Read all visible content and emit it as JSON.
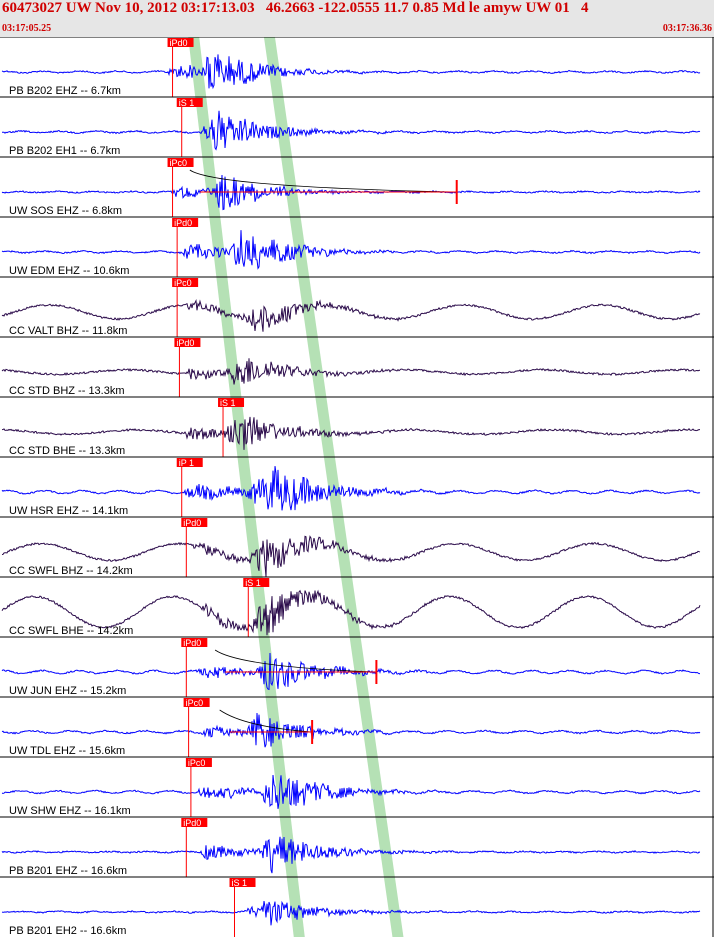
{
  "header": {
    "title": "60473027 UW Nov 10, 2012 03:17:13.03   46.2663 -122.0555 11.7 0.85 Md le amyw UW 01   4",
    "time_start": "03:17:05.25",
    "time_end": "03:17:36.36"
  },
  "colors": {
    "header_text": "#d00000",
    "header_bg": "#e6e6e6",
    "trace_short_period": "#0000ff",
    "trace_broadband": "#2a0a4a",
    "pick_box": "#ff0000",
    "pick_text": "#ffffff",
    "p_band": "#a8dca8",
    "s_band": "#a8dca8"
  },
  "chart_data": {
    "type": "line",
    "x_axis": {
      "start": "03:17:05.25",
      "end": "03:17:36.36"
    },
    "p_band_time": [
      8.2,
      12.8
    ],
    "s_band_time": [
      11.5,
      17.1
    ],
    "traces": [
      {
        "label": "PB B202 EHZ -- 6.7km",
        "pick": "iPd0",
        "pick_time": 7.3,
        "onset_time": 7.3,
        "secondary_time": 9.0,
        "peak_time": 9.0,
        "amp": 0.95,
        "background": 0.03,
        "kind": "sp"
      },
      {
        "label": "PB B202 EH1 -- 6.7km",
        "pick": "iS 1",
        "pick_time": 7.7,
        "onset_time": 8.7,
        "secondary_time": 9.0,
        "peak_time": 9.2,
        "amp": 0.9,
        "background": 0.03,
        "kind": "sp"
      },
      {
        "label": "UW SOS EHZ -- 6.8km",
        "pick": "iPc0",
        "pick_time": 7.3,
        "onset_time": 7.4,
        "secondary_time": 9.3,
        "peak_time": 9.6,
        "amp": 0.7,
        "background": 0.02,
        "kind": "sp",
        "coda": true,
        "marker_time": 19.9
      },
      {
        "label": "UW EDM EHZ -- 10.6km",
        "pick": "iPd0",
        "pick_time": 7.5,
        "onset_time": 7.9,
        "secondary_time": 10.0,
        "peak_time": 10.5,
        "amp": 0.9,
        "background": 0.03,
        "kind": "sp"
      },
      {
        "label": "CC VALT BHZ -- 11.8km",
        "pick": "iPc0",
        "pick_time": 7.5,
        "onset_time": 8.0,
        "secondary_time": 10.5,
        "peak_time": 11.0,
        "amp": 0.6,
        "background": 0.25,
        "kind": "bb"
      },
      {
        "label": "CC STD BHZ -- 13.3km",
        "pick": "iPd0",
        "pick_time": 7.6,
        "onset_time": 8.0,
        "secondary_time": 10.0,
        "peak_time": 10.3,
        "amp": 0.7,
        "background": 0.08,
        "kind": "bb"
      },
      {
        "label": "CC STD BHE -- 13.3km",
        "pick": "iS 1",
        "pick_time": 9.5,
        "onset_time": 8.0,
        "secondary_time": 9.7,
        "peak_time": 10.2,
        "amp": 0.8,
        "background": 0.08,
        "kind": "bb"
      },
      {
        "label": "UW HSR EHZ -- 14.1km",
        "pick": "iP 1",
        "pick_time": 7.7,
        "onset_time": 8.0,
        "secondary_time": 10.5,
        "peak_time": 12.0,
        "amp": 0.95,
        "background": 0.05,
        "kind": "sp"
      },
      {
        "label": "CC SWFL BHZ -- 14.2km",
        "pick": "iPd0",
        "pick_time": 7.9,
        "onset_time": 8.3,
        "secondary_time": 10.7,
        "peak_time": 11.5,
        "amp": 0.75,
        "background": 0.3,
        "kind": "bb"
      },
      {
        "label": "CC SWFL BHE -- 14.2km",
        "pick": "iS 1",
        "pick_time": 10.6,
        "onset_time": 8.7,
        "secondary_time": 10.8,
        "peak_time": 11.5,
        "amp": 0.8,
        "background": 0.55,
        "kind": "bb"
      },
      {
        "label": "UW JUN EHZ -- 15.2km",
        "pick": "iPd0",
        "pick_time": 7.9,
        "onset_time": 8.5,
        "secondary_time": 11.0,
        "peak_time": 11.7,
        "amp": 0.75,
        "background": 0.05,
        "kind": "sp",
        "coda": true,
        "marker_time": 16.4
      },
      {
        "label": "UW TDL EHZ -- 15.6km",
        "pick": "iPc0",
        "pick_time": 8.0,
        "onset_time": 8.7,
        "secondary_time": 10.7,
        "peak_time": 11.2,
        "amp": 0.7,
        "background": 0.04,
        "kind": "sp",
        "coda": true,
        "marker_time": 13.6
      },
      {
        "label": "UW SHW EHZ -- 16.1km",
        "pick": "iPc0",
        "pick_time": 8.1,
        "onset_time": 8.6,
        "secondary_time": 11.2,
        "peak_time": 12.0,
        "amp": 0.85,
        "background": 0.04,
        "kind": "sp"
      },
      {
        "label": "PB B201 EHZ -- 16.6km",
        "pick": "iPd0",
        "pick_time": 7.9,
        "onset_time": 8.7,
        "secondary_time": 11.3,
        "peak_time": 11.8,
        "amp": 0.8,
        "background": 0.02,
        "kind": "sp"
      },
      {
        "label": "PB B201 EH2 -- 16.6km",
        "pick": "iS 1",
        "pick_time": 10.0,
        "onset_time": 10.6,
        "secondary_time": 11.3,
        "peak_time": 11.4,
        "amp": 0.6,
        "background": 0.02,
        "kind": "sp"
      }
    ]
  }
}
